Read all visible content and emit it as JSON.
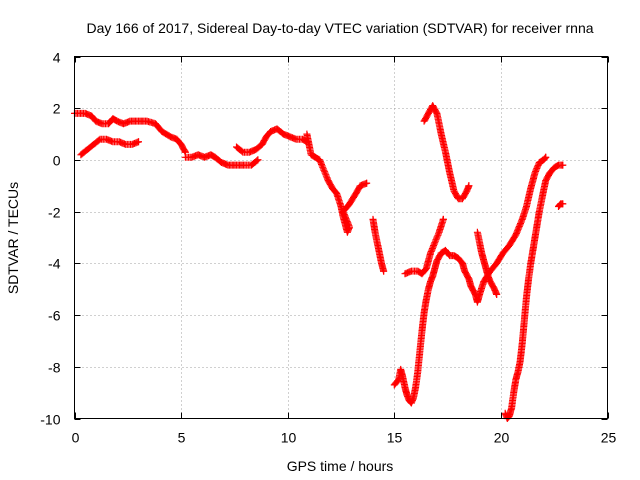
{
  "chart_data": {
    "type": "scatter",
    "title": "Day 166 of 2017, Sidereal Day-to-day VTEC variation (SDTVAR) for receiver rnna",
    "xlabel": "GPS time / hours",
    "ylabel": "SDTVAR / TECUs",
    "xlim": [
      0,
      25
    ],
    "ylim": [
      -10,
      4
    ],
    "xticks": [
      0,
      5,
      10,
      15,
      20,
      25
    ],
    "yticks": [
      -10,
      -8,
      -6,
      -4,
      -2,
      0,
      2,
      4
    ],
    "grid": true,
    "marker": "+",
    "color": "#ff0000",
    "series": [
      {
        "segments": [
          [
            [
              0.0,
              1.8
            ],
            [
              0.5,
              1.8
            ],
            [
              0.8,
              1.7
            ],
            [
              1.0,
              1.5
            ],
            [
              1.3,
              1.4
            ],
            [
              1.6,
              1.4
            ],
            [
              1.8,
              1.6
            ],
            [
              2.0,
              1.5
            ],
            [
              2.3,
              1.4
            ],
            [
              2.6,
              1.5
            ],
            [
              3.0,
              1.5
            ],
            [
              3.4,
              1.5
            ],
            [
              3.8,
              1.4
            ],
            [
              4.1,
              1.1
            ],
            [
              4.5,
              0.9
            ],
            [
              4.8,
              0.8
            ],
            [
              5.0,
              0.6
            ],
            [
              5.2,
              0.3
            ]
          ],
          [
            [
              0.3,
              0.2
            ],
            [
              0.6,
              0.4
            ],
            [
              0.9,
              0.6
            ],
            [
              1.2,
              0.8
            ],
            [
              1.5,
              0.8
            ],
            [
              1.8,
              0.7
            ],
            [
              2.1,
              0.7
            ],
            [
              2.4,
              0.6
            ],
            [
              2.7,
              0.6
            ],
            [
              3.0,
              0.7
            ]
          ],
          [
            [
              5.2,
              0.1
            ],
            [
              5.5,
              0.1
            ],
            [
              5.8,
              0.2
            ],
            [
              6.1,
              0.1
            ],
            [
              6.4,
              0.2
            ],
            [
              6.6,
              0.1
            ],
            [
              6.9,
              -0.1
            ],
            [
              7.2,
              -0.2
            ],
            [
              7.6,
              -0.2
            ],
            [
              8.0,
              -0.2
            ],
            [
              8.3,
              -0.2
            ],
            [
              8.6,
              0.0
            ]
          ],
          [
            [
              7.6,
              0.5
            ],
            [
              7.9,
              0.3
            ],
            [
              8.2,
              0.3
            ],
            [
              8.5,
              0.4
            ],
            [
              8.8,
              0.6
            ],
            [
              9.0,
              0.9
            ],
            [
              9.2,
              1.1
            ],
            [
              9.5,
              1.2
            ],
            [
              9.8,
              1.0
            ],
            [
              10.1,
              0.9
            ],
            [
              10.4,
              0.8
            ],
            [
              10.7,
              0.8
            ],
            [
              10.9,
              0.7
            ]
          ],
          [
            [
              10.9,
              1.0
            ],
            [
              11.0,
              0.6
            ],
            [
              11.1,
              0.2
            ],
            [
              11.3,
              0.1
            ],
            [
              11.5,
              0.0
            ],
            [
              11.7,
              -0.4
            ],
            [
              11.9,
              -0.8
            ],
            [
              12.1,
              -1.1
            ],
            [
              12.3,
              -1.3
            ],
            [
              12.5,
              -1.8
            ],
            [
              12.6,
              -2.2
            ],
            [
              12.8,
              -2.8
            ],
            [
              12.9,
              -2.6
            ],
            [
              12.6,
              -2.0
            ],
            [
              12.9,
              -1.7
            ],
            [
              13.2,
              -1.3
            ],
            [
              13.4,
              -1.0
            ],
            [
              13.7,
              -0.9
            ]
          ],
          [
            [
              14.0,
              -2.3
            ],
            [
              14.1,
              -2.8
            ],
            [
              14.2,
              -3.2
            ],
            [
              14.3,
              -3.6
            ],
            [
              14.4,
              -4.0
            ],
            [
              14.5,
              -4.3
            ]
          ],
          [
            [
              15.0,
              -8.7
            ],
            [
              15.2,
              -8.5
            ],
            [
              15.3,
              -8.1
            ],
            [
              15.4,
              -8.4
            ],
            [
              15.5,
              -8.8
            ],
            [
              15.6,
              -9.1
            ],
            [
              15.7,
              -9.3
            ],
            [
              15.8,
              -9.4
            ],
            [
              15.9,
              -9.2
            ],
            [
              16.0,
              -8.8
            ],
            [
              16.1,
              -8.2
            ],
            [
              16.2,
              -7.4
            ],
            [
              16.3,
              -6.6
            ],
            [
              16.4,
              -5.9
            ],
            [
              16.5,
              -5.4
            ],
            [
              16.6,
              -5.0
            ],
            [
              16.7,
              -4.7
            ],
            [
              16.8,
              -4.5
            ],
            [
              16.9,
              -4.2
            ],
            [
              17.0,
              -3.9
            ],
            [
              17.2,
              -3.6
            ],
            [
              17.4,
              -3.5
            ],
            [
              17.6,
              -3.7
            ],
            [
              17.8,
              -3.7
            ],
            [
              18.0,
              -3.8
            ],
            [
              18.2,
              -4.0
            ],
            [
              18.3,
              -4.3
            ],
            [
              18.5,
              -4.6
            ],
            [
              18.6,
              -4.9
            ],
            [
              18.8,
              -5.2
            ],
            [
              18.9,
              -5.5
            ],
            [
              19.0,
              -5.2
            ],
            [
              19.2,
              -4.7
            ],
            [
              19.5,
              -4.3
            ],
            [
              19.8,
              -4.0
            ],
            [
              20.1,
              -3.6
            ],
            [
              20.4,
              -3.3
            ],
            [
              20.7,
              -2.9
            ],
            [
              21.0,
              -2.3
            ],
            [
              21.2,
              -1.8
            ],
            [
              21.4,
              -1.1
            ],
            [
              21.6,
              -0.5
            ],
            [
              21.8,
              -0.1
            ],
            [
              22.0,
              0.0
            ],
            [
              22.1,
              0.1
            ]
          ],
          [
            [
              15.5,
              -4.4
            ],
            [
              15.8,
              -4.3
            ],
            [
              16.1,
              -4.3
            ],
            [
              16.3,
              -4.4
            ],
            [
              16.5,
              -4.2
            ],
            [
              16.7,
              -3.6
            ],
            [
              16.9,
              -3.2
            ],
            [
              17.1,
              -2.8
            ],
            [
              17.3,
              -2.3
            ]
          ],
          [
            [
              16.4,
              1.5
            ],
            [
              16.6,
              1.8
            ],
            [
              16.8,
              2.1
            ],
            [
              17.0,
              1.8
            ],
            [
              17.2,
              1.0
            ],
            [
              17.4,
              0.3
            ],
            [
              17.6,
              -0.5
            ],
            [
              17.8,
              -1.2
            ],
            [
              18.0,
              -1.5
            ],
            [
              18.2,
              -1.5
            ],
            [
              18.4,
              -1.2
            ],
            [
              18.5,
              -1.0
            ]
          ],
          [
            [
              18.9,
              -2.8
            ],
            [
              19.0,
              -3.2
            ],
            [
              19.1,
              -3.6
            ],
            [
              19.2,
              -3.9
            ],
            [
              19.3,
              -4.2
            ],
            [
              19.4,
              -4.5
            ],
            [
              19.5,
              -4.7
            ],
            [
              19.7,
              -5.0
            ],
            [
              19.8,
              -5.2
            ]
          ],
          [
            [
              20.2,
              -9.8
            ],
            [
              20.3,
              -10.0
            ],
            [
              20.4,
              -9.9
            ],
            [
              20.5,
              -9.6
            ],
            [
              20.6,
              -9.0
            ],
            [
              20.7,
              -8.5
            ],
            [
              20.8,
              -8.2
            ],
            [
              20.9,
              -7.8
            ],
            [
              21.0,
              -7.1
            ],
            [
              21.1,
              -6.2
            ],
            [
              21.2,
              -5.3
            ],
            [
              21.3,
              -4.6
            ],
            [
              21.4,
              -4.0
            ],
            [
              21.5,
              -3.5
            ],
            [
              21.6,
              -3.0
            ],
            [
              21.7,
              -2.5
            ],
            [
              21.8,
              -2.0
            ],
            [
              21.9,
              -1.6
            ],
            [
              22.0,
              -1.2
            ],
            [
              22.1,
              -0.8
            ],
            [
              22.3,
              -0.5
            ],
            [
              22.5,
              -0.3
            ],
            [
              22.7,
              -0.2
            ],
            [
              22.9,
              -0.2
            ]
          ],
          [
            [
              22.7,
              -1.8
            ],
            [
              22.8,
              -1.7
            ],
            [
              22.9,
              -1.7
            ]
          ]
        ]
      }
    ]
  }
}
